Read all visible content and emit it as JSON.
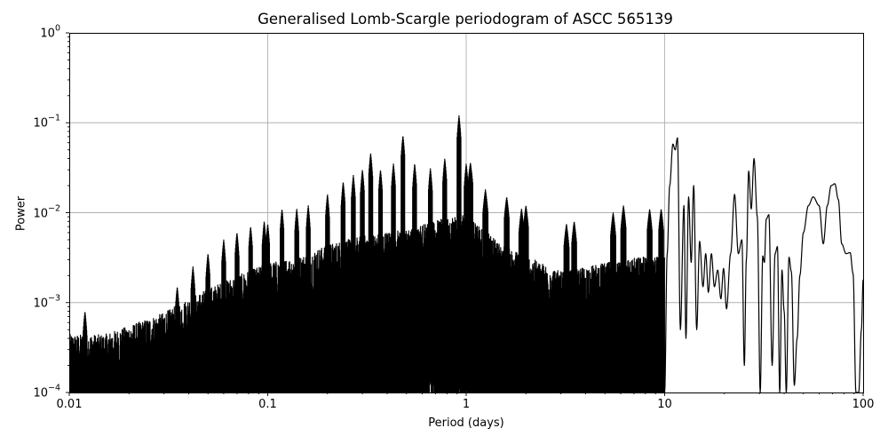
{
  "chart_data": {
    "type": "line",
    "title": "Generalised Lomb-Scargle periodogram of ASCC 565139",
    "xlabel": "Period (days)",
    "ylabel": "Power",
    "xscale": "log",
    "yscale": "log",
    "xlim": [
      0.01,
      100
    ],
    "ylim": [
      0.0001,
      1
    ],
    "grid": true,
    "legend": null,
    "line_color": "#000000",
    "grid_color": "#b0b0b0",
    "xticks": [
      {
        "value": 0.01,
        "label": "0.01"
      },
      {
        "value": 0.1,
        "label": "0.1"
      },
      {
        "value": 1,
        "label": "1"
      },
      {
        "value": 10,
        "label": "10"
      },
      {
        "value": 100,
        "label": "100"
      }
    ],
    "yticks": [
      {
        "value": 0.0001,
        "base": "10",
        "exp": "−4"
      },
      {
        "value": 0.001,
        "base": "10",
        "exp": "−3"
      },
      {
        "value": 0.01,
        "base": "10",
        "exp": "−2"
      },
      {
        "value": 0.1,
        "base": "10",
        "exp": "−1"
      },
      {
        "value": 1,
        "base": "10",
        "exp": "0"
      }
    ],
    "envelope": {
      "description": "Approximate upper envelope of the dense noise forest (period_days, power)",
      "x": [
        0.01,
        0.015,
        0.02,
        0.03,
        0.04,
        0.05,
        0.07,
        0.1,
        0.15,
        0.2,
        0.3,
        0.5,
        0.8,
        1.0,
        1.5,
        2,
        3,
        5,
        8,
        10
      ],
      "y": [
        0.0004,
        0.0004,
        0.0005,
        0.0007,
        0.001,
        0.0013,
        0.0018,
        0.0025,
        0.003,
        0.004,
        0.005,
        0.006,
        0.008,
        0.009,
        0.004,
        0.003,
        0.002,
        0.0025,
        0.003,
        0.003
      ]
    },
    "peaks": {
      "x": [
        0.012,
        0.035,
        0.042,
        0.05,
        0.06,
        0.07,
        0.082,
        0.096,
        0.1,
        0.118,
        0.14,
        0.16,
        0.2,
        0.24,
        0.27,
        0.3,
        0.33,
        0.37,
        0.43,
        0.48,
        0.55,
        0.66,
        0.78,
        0.92,
        1.0,
        1.05,
        1.25,
        1.6,
        1.9,
        2.0,
        3.2,
        3.5,
        5.5,
        6.2,
        8.4,
        9.6
      ],
      "y": [
        0.0008,
        0.0015,
        0.0025,
        0.0035,
        0.005,
        0.006,
        0.007,
        0.008,
        0.0075,
        0.011,
        0.011,
        0.012,
        0.016,
        0.022,
        0.026,
        0.03,
        0.046,
        0.03,
        0.035,
        0.072,
        0.035,
        0.031,
        0.04,
        0.12,
        0.035,
        0.036,
        0.018,
        0.015,
        0.011,
        0.012,
        0.0075,
        0.008,
        0.01,
        0.012,
        0.011,
        0.011
      ]
    },
    "smooth_tail": {
      "description": "Resolved low-frequency structure for periods > ~10 d (period_days, power)",
      "x": [
        10.0,
        10.3,
        10.6,
        11.0,
        11.3,
        11.6,
        12.0,
        12.5,
        12.8,
        13.2,
        13.6,
        14.0,
        14.5,
        15.0,
        15.6,
        16.1,
        16.6,
        17.2,
        17.8,
        18.5,
        19.2,
        19.8,
        20.5,
        21.5,
        22.5,
        23.5,
        24.5,
        25.2,
        25.8,
        26.5,
        27.3,
        28.2,
        29.3,
        30.3,
        31.2,
        31.8,
        32.5,
        33.5,
        34.8,
        36.0,
        37.0,
        38.0,
        39.0,
        40.0,
        41.0,
        42.3,
        43.5,
        45.0,
        46.5,
        48.0,
        50.0,
        53.0,
        56.0,
        60.0,
        63.0,
        66.0,
        69.0,
        72.0,
        75.0,
        78.0,
        82.0,
        86.0,
        89.0,
        92.0,
        95.0,
        98.0,
        100.0
      ],
      "y": [
        0.0001,
        0.0035,
        0.02,
        0.058,
        0.05,
        0.068,
        0.0005,
        0.012,
        0.0004,
        0.015,
        0.0028,
        0.02,
        0.0005,
        0.0048,
        0.0015,
        0.0035,
        0.0013,
        0.0035,
        0.0015,
        0.0023,
        0.0011,
        0.0024,
        0.00085,
        0.0035,
        0.016,
        0.0035,
        0.005,
        0.0002,
        0.003,
        0.029,
        0.011,
        0.04,
        0.009,
        0.0001,
        0.0033,
        0.0028,
        0.0085,
        0.0095,
        0.0002,
        0.0035,
        0.0042,
        0.0001,
        0.0023,
        0.0008,
        0.0001,
        0.0032,
        0.0022,
        0.00012,
        0.0004,
        0.002,
        0.006,
        0.012,
        0.015,
        0.012,
        0.0045,
        0.012,
        0.02,
        0.021,
        0.014,
        0.0045,
        0.0035,
        0.0036,
        0.0021,
        0.0001,
        0.0001,
        0.0005,
        0.0018
      ]
    }
  }
}
